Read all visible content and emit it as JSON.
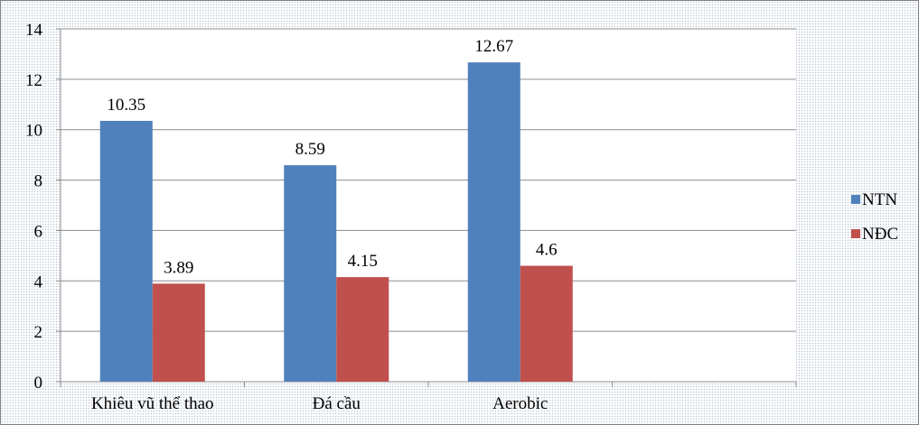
{
  "chart_data": {
    "type": "bar",
    "title": "",
    "xlabel": "",
    "ylabel": "",
    "categories": [
      "Khiêu vũ thể thao",
      "Đá cầu",
      "Aerobic",
      ""
    ],
    "series": [
      {
        "name": "NTN",
        "color": "#4f81bd",
        "values": [
          10.35,
          8.59,
          12.67,
          null
        ]
      },
      {
        "name": "NĐC",
        "color": "#c0504d",
        "values": [
          3.89,
          4.15,
          4.6,
          null
        ]
      }
    ],
    "ylim": [
      0,
      14
    ],
    "yticks": [
      0,
      2,
      4,
      6,
      8,
      10,
      12,
      14
    ],
    "grid": true,
    "legend": "right"
  }
}
